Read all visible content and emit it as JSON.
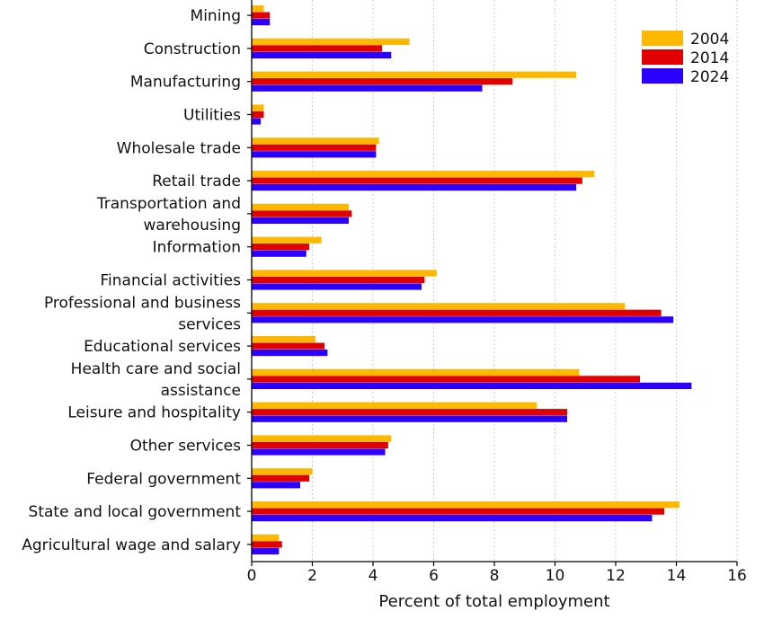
{
  "chart_data": {
    "type": "bar",
    "orientation": "horizontal",
    "title": "",
    "xlabel": "Percent of total employment",
    "ylabel": "",
    "xlim": [
      0,
      16
    ],
    "xticks": [
      "0",
      "2",
      "4",
      "6",
      "8",
      "10",
      "12",
      "14",
      "16"
    ],
    "grid": "vertical dotted",
    "legend_position": "top-right",
    "categories": [
      [
        "Mining"
      ],
      [
        "Construction"
      ],
      [
        "Manufacturing"
      ],
      [
        "Utilities"
      ],
      [
        "Wholesale trade"
      ],
      [
        "Retail trade"
      ],
      [
        "Transportation and",
        "warehousing"
      ],
      [
        "Information"
      ],
      [
        "Financial activities"
      ],
      [
        "Professional and business",
        "services"
      ],
      [
        "Educational services"
      ],
      [
        "Health care and social",
        "assistance"
      ],
      [
        "Leisure and hospitality"
      ],
      [
        "Other services"
      ],
      [
        "Federal government"
      ],
      [
        "State and local government"
      ],
      [
        "Agricultural wage and salary"
      ]
    ],
    "series": [
      {
        "name": "2004",
        "color": "#FFB800",
        "values": [
          0.4,
          5.2,
          10.7,
          0.4,
          4.2,
          11.3,
          3.2,
          2.3,
          6.1,
          12.3,
          2.1,
          10.8,
          9.4,
          4.6,
          2.0,
          14.1,
          0.9
        ]
      },
      {
        "name": "2014",
        "color": "#E00000",
        "values": [
          0.6,
          4.3,
          8.6,
          0.4,
          4.1,
          10.9,
          3.3,
          1.9,
          5.7,
          13.5,
          2.4,
          12.8,
          10.4,
          4.5,
          1.9,
          13.6,
          1.0
        ]
      },
      {
        "name": "2024",
        "color": "#2B00FF",
        "values": [
          0.6,
          4.6,
          7.6,
          0.3,
          4.1,
          10.7,
          3.2,
          1.8,
          5.6,
          13.9,
          2.5,
          14.5,
          10.4,
          4.4,
          1.6,
          13.2,
          0.9
        ]
      }
    ]
  }
}
